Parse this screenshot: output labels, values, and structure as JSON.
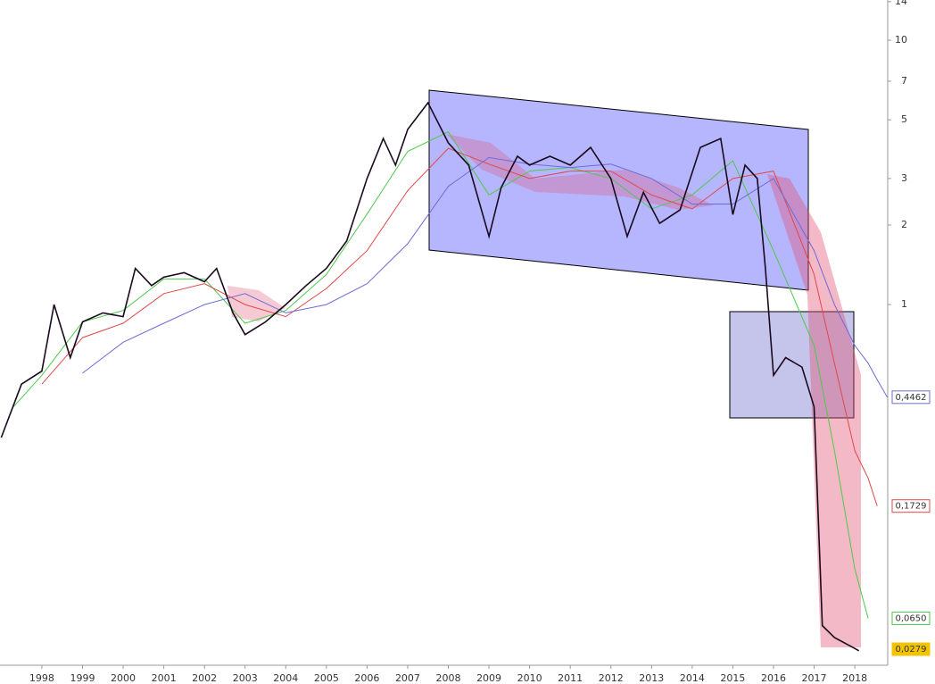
{
  "chart_data": {
    "type": "line",
    "log_scale": true,
    "xlim": [
      1996.97,
      2018.81
    ],
    "xticks": [
      1998,
      1999,
      2000,
      2001,
      2002,
      2003,
      2004,
      2005,
      2006,
      2007,
      2008,
      2009,
      2010,
      2011,
      2012,
      2013,
      2014,
      2015,
      2016,
      2017,
      2018
    ],
    "ylim": [
      0.0432,
      14.2
    ],
    "yticks": [
      1,
      2,
      3,
      5,
      7,
      10,
      14
    ],
    "price": {
      "color": "#1a0a1e",
      "x": [
        1997.0,
        1997.5,
        1998.0,
        1998.3,
        1998.7,
        1999.0,
        1999.5,
        2000.0,
        2000.3,
        2000.7,
        2001.0,
        2001.5,
        2002.0,
        2002.3,
        2002.7,
        2003.0,
        2003.5,
        2004.0,
        2004.5,
        2005.0,
        2005.5,
        2006.0,
        2006.4,
        2006.7,
        2007.0,
        2007.5,
        2008.0,
        2008.5,
        2009.0,
        2009.3,
        2009.7,
        2010.0,
        2010.5,
        2011.0,
        2011.5,
        2012.0,
        2012.4,
        2012.8,
        2013.2,
        2013.7,
        2014.2,
        2014.7,
        2015.0,
        2015.3,
        2015.6,
        2015.8,
        2016.0,
        2016.3,
        2016.7,
        2017.0,
        2017.2,
        2017.5,
        2018.0,
        2018.1
      ],
      "values": [
        0.314,
        0.5,
        0.56,
        1.0,
        0.63,
        0.86,
        0.93,
        0.9,
        1.37,
        1.18,
        1.27,
        1.32,
        1.22,
        1.37,
        0.93,
        0.77,
        0.86,
        1.0,
        1.18,
        1.37,
        1.74,
        3.0,
        4.25,
        3.37,
        4.6,
        5.8,
        4.09,
        3.37,
        1.81,
        2.77,
        3.64,
        3.37,
        3.64,
        3.37,
        3.93,
        3.0,
        1.81,
        2.66,
        2.03,
        2.28,
        3.93,
        4.25,
        2.19,
        3.37,
        3.0,
        1.37,
        0.54,
        0.63,
        0.58,
        0.41,
        0.061,
        0.055,
        0.05,
        0.049
      ]
    },
    "x": [
      1997.3,
      1998,
      1999,
      2000,
      2001,
      2002,
      2003,
      2004,
      2005,
      2006,
      2007,
      2008,
      2009,
      2010,
      2011,
      2012,
      2013,
      2014,
      2015,
      2016,
      2017,
      2017.5,
      2018,
      2018.33,
      2018.55,
      2018.8
    ],
    "series": [
      {
        "color": "#4cc94c",
        "values": [
          0.41,
          0.54,
          0.86,
          0.95,
          1.25,
          1.25,
          0.85,
          0.95,
          1.3,
          2.2,
          3.8,
          4.5,
          2.6,
          3.2,
          3.3,
          3.0,
          2.3,
          2.6,
          3.5,
          1.6,
          0.7,
          0.28,
          0.1,
          0.065,
          null,
          null
        ]
      },
      {
        "color": "#e04848",
        "values": [
          null,
          0.5,
          0.75,
          0.85,
          1.1,
          1.2,
          1.0,
          0.9,
          1.15,
          1.6,
          2.7,
          3.9,
          3.4,
          3.0,
          3.2,
          3.2,
          2.6,
          2.3,
          3.0,
          3.2,
          1.3,
          0.6,
          0.28,
          0.22,
          0.1729,
          null
        ]
      },
      {
        "color": "#6b6bd6",
        "values": [
          null,
          null,
          0.55,
          0.72,
          0.85,
          1.0,
          1.1,
          0.93,
          1.0,
          1.2,
          1.7,
          2.8,
          3.6,
          3.4,
          3.3,
          3.4,
          3.0,
          2.4,
          2.4,
          3.0,
          1.6,
          1.0,
          0.7,
          0.6,
          0.52,
          0.4462
        ]
      }
    ],
    "price_labels": [
      {
        "value": 0.4462,
        "label": "0,4462",
        "color": "#6b6bd6"
      },
      {
        "value": 0.1729,
        "label": "0,1729",
        "color": "#e04848"
      },
      {
        "value": 0.065,
        "label": "0,0650",
        "color": "#4cc94c"
      },
      {
        "value": 0.0279,
        "label": "0,0279",
        "color": "#f2c400"
      }
    ]
  }
}
